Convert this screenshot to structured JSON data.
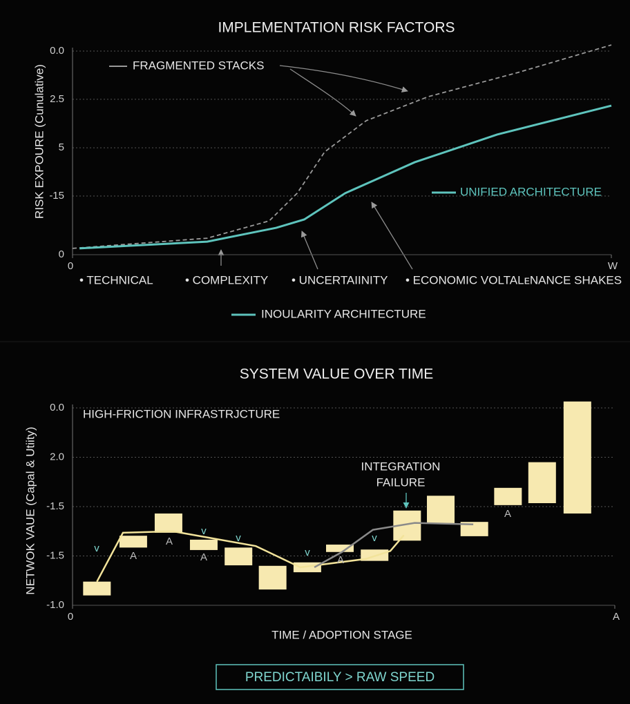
{
  "chart_data": [
    {
      "type": "line",
      "title": "IMPLEMENTATION RISK FACTORS",
      "ylabel": "RISK EXPOURE (Cunulative)",
      "xlim": [
        0,
        100
      ],
      "xticks": [
        0,
        {
          "value": 100,
          "label": "W"
        }
      ],
      "ylim": [
        0,
        100
      ],
      "yticks": [
        {
          "value": 100,
          "label": "0.0"
        },
        {
          "value": 76.3,
          "label": "2.5"
        },
        {
          "value": 52.5,
          "label": "5"
        },
        {
          "value": 28.8,
          "label": "-15"
        },
        0
      ],
      "series": [
        {
          "name": "FRAGMENTED STACKS",
          "color": "#9a9a9a",
          "dashed": true,
          "x": [
            0,
            25,
            36.5,
            41.7,
            46.8,
            54.5,
            66,
            82.7,
            100
          ],
          "values": [
            3.1,
            8.1,
            16.6,
            30.2,
            50.5,
            65.8,
            77.6,
            89.5,
            103
          ]
        },
        {
          "name": "UNIFIED ARCHITECTURE",
          "color": "#5ec4bd",
          "dashed": false,
          "x": [
            1.3,
            25,
            37.8,
            43,
            50.6,
            63.5,
            78.8,
            100
          ],
          "values": [
            3.1,
            6.4,
            13.2,
            17.3,
            30.2,
            45.4,
            59,
            73.2
          ]
        }
      ],
      "labels": [
        "• TECHNICAL",
        "• COMPLEXITY",
        "• UNCERTAIINITY",
        "• ECONOMIC VOLTALᴇNANCE SHAKES"
      ],
      "legend_extra": "INOULARITY ARCHITECTURE"
    },
    {
      "type": "bar",
      "title": "SYSTEM VALUE OVER TIME",
      "ylabel": "NETWOK VAUE (Capal & Utiity)",
      "xlabel": "TIME / ADOPTION STAGE",
      "xlim": [
        0,
        100
      ],
      "xticks": [
        0,
        {
          "value": 100,
          "label": "A"
        }
      ],
      "ylim": [
        0,
        4
      ],
      "yticks": [
        {
          "value": 4,
          "label": "0.0"
        },
        {
          "value": 3,
          "label": "2.0"
        },
        {
          "value": 2,
          "label": "-1.5"
        },
        {
          "value": 1,
          "label": "-1.5"
        },
        {
          "value": 0,
          "label": "-1.0"
        }
      ],
      "color": "#f7e9b0",
      "x": [
        4.5,
        11.2,
        17.7,
        24.2,
        30.6,
        36.9,
        43.3,
        49.3,
        55.7,
        61.7,
        67.9,
        74.1,
        80.3,
        86.6,
        93.1
      ],
      "ranges": [
        [
          0.2,
          0.48
        ],
        [
          1.17,
          1.41
        ],
        [
          1.47,
          1.86
        ],
        [
          1.12,
          1.33
        ],
        [
          0.81,
          1.17
        ],
        [
          0.32,
          0.8
        ],
        [
          0.67,
          0.87
        ],
        [
          1.08,
          1.23
        ],
        [
          0.9,
          1.13
        ],
        [
          1.31,
          1.92
        ],
        [
          1.66,
          2.22
        ],
        [
          1.4,
          1.69
        ],
        [
          2.03,
          2.38
        ],
        [
          2.07,
          2.9
        ],
        [
          1.86,
          4.13
        ]
      ],
      "lines": [
        {
          "color": "#f2e39a",
          "x": [
            4.5,
            9.3,
            18.5,
            33.8,
            42,
            54.1,
            58.6,
            61.1
          ],
          "values": [
            0.48,
            1.47,
            1.5,
            1.2,
            0.77,
            0.94,
            1.1,
            1.42
          ]
        },
        {
          "color": "#8a8a8a",
          "x": [
            44.6,
            49.7,
            55.4,
            63.1,
            73.9
          ],
          "values": [
            0.77,
            1.08,
            1.53,
            1.67,
            1.64
          ]
        }
      ],
      "marks": [
        "v",
        "A",
        "A",
        "v",
        "A",
        "v",
        "v",
        "A",
        "v",
        "A"
      ],
      "note": "HIGH-FRICTION INFRASTRJCTURE",
      "callout": [
        "INTEGRATION",
        "FAILURE"
      ],
      "footer": "PREDICTAIBILY > RAW SPEED"
    }
  ]
}
